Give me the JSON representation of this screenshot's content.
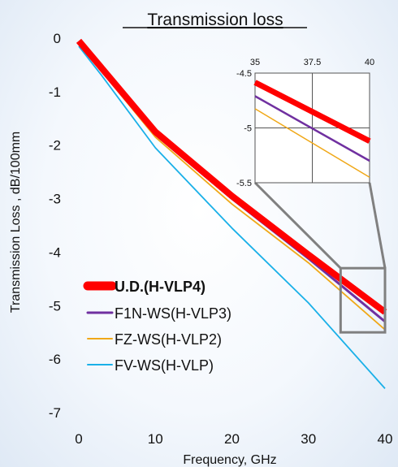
{
  "chart_data": {
    "type": "line",
    "title": "Transmission loss",
    "xlabel": "Frequency, GHz",
    "ylabel": "Transmission Loss , dB/100mm",
    "xlim": [
      0,
      40
    ],
    "ylim": [
      -7,
      0
    ],
    "xticks": [
      "0",
      "10",
      "20",
      "30",
      "40"
    ],
    "yticks": [
      "0",
      "-1",
      "-2",
      "-3",
      "-4",
      "-5",
      "-6",
      "-7"
    ],
    "grid": false,
    "legend_position": "bottom-left",
    "series": [
      {
        "name": "U.D.(H-VLP4)",
        "color": "#ff0000",
        "x": [
          0,
          10,
          20,
          30,
          40
        ],
        "y": [
          -0.05,
          -1.75,
          -2.95,
          -4.05,
          -5.12
        ]
      },
      {
        "name": "F1N-WS(H-VLP3)",
        "color": "#7030a0",
        "x": [
          0,
          10,
          20,
          30,
          40
        ],
        "y": [
          -0.1,
          -1.8,
          -3.0,
          -4.12,
          -5.3
        ]
      },
      {
        "name": "FZ-WS(H-VLP2)",
        "color": "#f0a818",
        "x": [
          0,
          10,
          20,
          30,
          40
        ],
        "y": [
          -0.1,
          -1.85,
          -3.1,
          -4.2,
          -5.45
        ]
      },
      {
        "name": "FV-WS(H-VLP)",
        "color": "#1ab0e8",
        "x": [
          0,
          3,
          10,
          20,
          30,
          40
        ],
        "y": [
          -0.15,
          -0.7,
          -2.05,
          -3.55,
          -4.95,
          -6.55
        ]
      }
    ],
    "inset": {
      "xlim": [
        35,
        40
      ],
      "ylim": [
        -5.5,
        -4.5
      ],
      "xticks": [
        "35",
        "37.5",
        "40"
      ],
      "yticks": [
        "-4.5",
        "-5",
        "-5.5"
      ],
      "grid": true
    }
  }
}
